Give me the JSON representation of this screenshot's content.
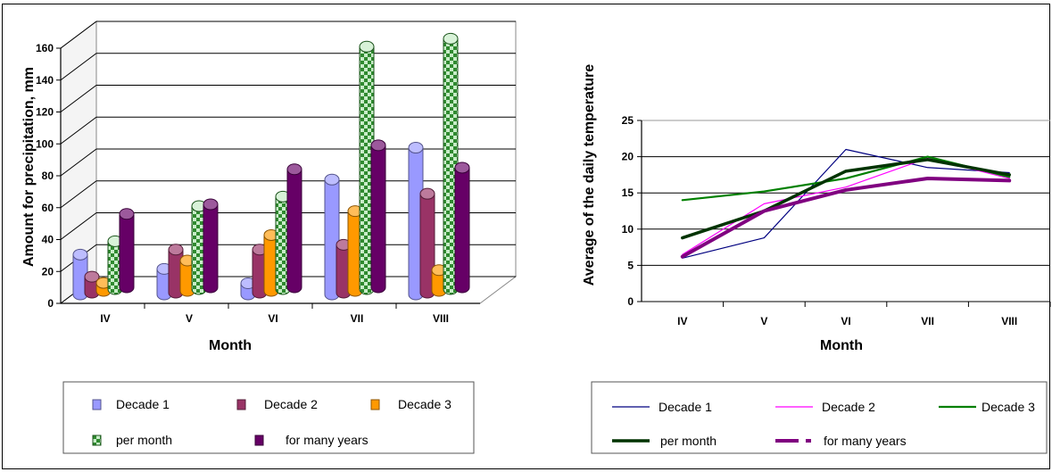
{
  "charts": [
    {
      "type": "bar",
      "three_d": true,
      "xlabel": "Month",
      "ylabel": "Amount for precipitation, mm",
      "ylim": [
        0,
        160
      ],
      "yticks": [
        0,
        20,
        40,
        60,
        80,
        100,
        120,
        140,
        160
      ],
      "categories": [
        "IV",
        "V",
        "VI",
        "VII",
        "VIII"
      ],
      "grid": true,
      "legend": "bottom",
      "series": [
        {
          "name": "Decade 1",
          "color": "#9999ff",
          "values": [
            25,
            16,
            7,
            72,
            92
          ]
        },
        {
          "name": "Decade 2",
          "color": "#993366",
          "values": [
            10,
            27,
            27,
            30,
            62
          ]
        },
        {
          "name": "Decade 3",
          "color": "#ff9900",
          "values": [
            5,
            19,
            35,
            50,
            13
          ]
        },
        {
          "name": "per month",
          "color": "#339933",
          "pattern": "checker",
          "values": [
            30,
            52,
            58,
            152,
            157
          ]
        },
        {
          "name": "for many years",
          "color": "#660066",
          "values": [
            46,
            52,
            74,
            89,
            75
          ]
        }
      ]
    },
    {
      "type": "line",
      "xlabel": "Month",
      "ylabel": "Average of the daily temperature",
      "ylim": [
        0,
        25
      ],
      "yticks": [
        0,
        5,
        10,
        15,
        20,
        25
      ],
      "categories": [
        "IV",
        "V",
        "VI",
        "VII",
        "VIII"
      ],
      "grid": true,
      "legend": "bottom",
      "series": [
        {
          "name": "Decade 1",
          "color": "#000080",
          "width": 1.2,
          "values": [
            6.0,
            8.8,
            21.0,
            18.5,
            17.8
          ]
        },
        {
          "name": "Decade 2",
          "color": "#ff00ff",
          "width": 1.2,
          "values": [
            6.5,
            13.5,
            15.8,
            19.8,
            17.0
          ]
        },
        {
          "name": "Decade 3",
          "color": "#008000",
          "width": 2.2,
          "values": [
            14.0,
            15.2,
            17.0,
            20.0,
            17.2
          ]
        },
        {
          "name": "per month",
          "color": "#003300",
          "width": 3.5,
          "values": [
            8.8,
            12.5,
            18.0,
            19.6,
            17.5
          ]
        },
        {
          "name": "for many years",
          "color": "#800080",
          "width": 4,
          "values": [
            6.2,
            12.5,
            15.4,
            17.0,
            16.7
          ]
        }
      ]
    }
  ]
}
